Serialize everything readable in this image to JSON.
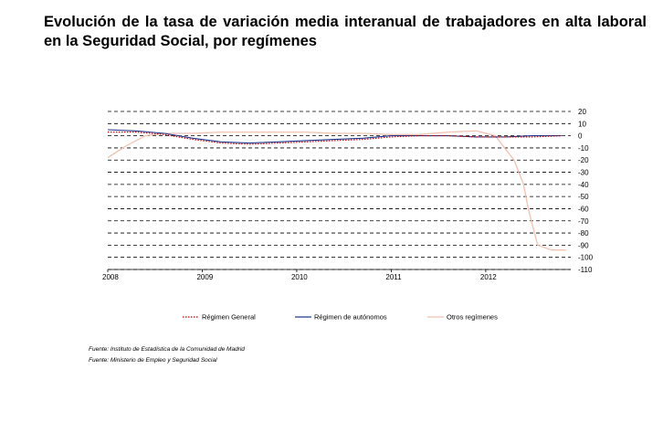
{
  "title": "Evolución de la tasa de variación media interanual de trabajadores en alta laboral en la Seguridad Social, por  regímenes",
  "sources": [
    "Fuente: Instituto de Estadística de la Comunidad de Madrid",
    "Fuente: Ministerio de Empleo y Seguridad Social"
  ],
  "chart_data": {
    "type": "line",
    "title": "Evolución de la tasa de variación media interanual de trabajadores en alta laboral en la Seguridad Social, por  regímenes",
    "xlabel": "",
    "ylabel": "",
    "x_ticks": [
      "2008",
      "2009",
      "2010",
      "2011",
      "2012"
    ],
    "xlim": [
      2008,
      2012.9
    ],
    "ylim": [
      -110,
      20
    ],
    "y_ticks": [
      20,
      10,
      0,
      -10,
      -20,
      -30,
      -40,
      -50,
      -60,
      -70,
      -80,
      -90,
      -100,
      -110
    ],
    "y_axis_side": "right",
    "grid": "horizontal dashed",
    "legend_position": "bottom",
    "series": [
      {
        "name": "Régimen General",
        "color": "#c00000",
        "style": "dotted",
        "x": [
          2008.0,
          2008.3,
          2008.6,
          2008.9,
          2009.2,
          2009.5,
          2009.8,
          2010.1,
          2010.4,
          2010.7,
          2011.0,
          2011.3,
          2011.6,
          2011.9,
          2012.2,
          2012.5,
          2012.8
        ],
        "y": [
          3,
          3,
          1,
          -3,
          -6,
          -7,
          -6,
          -5,
          -4,
          -3,
          -1,
          0,
          0,
          -1,
          -1,
          -1,
          0
        ]
      },
      {
        "name": "Régimen de autónomos",
        "color": "#1f3a93",
        "style": "solid",
        "x": [
          2008.0,
          2008.3,
          2008.6,
          2008.9,
          2009.2,
          2009.5,
          2009.8,
          2010.1,
          2010.4,
          2010.7,
          2011.0,
          2011.3,
          2011.6,
          2011.9,
          2012.2,
          2012.5,
          2012.8
        ],
        "y": [
          5,
          4,
          2,
          -2,
          -5,
          -6,
          -5,
          -4,
          -3,
          -2,
          0,
          0,
          0,
          -1,
          -1,
          0,
          0
        ]
      },
      {
        "name": "Otros regímenes",
        "color": "#f2c1b0",
        "style": "solid",
        "x": [
          2008.0,
          2008.2,
          2008.4,
          2008.6,
          2008.9,
          2009.2,
          2009.5,
          2009.8,
          2010.1,
          2010.4,
          2010.7,
          2011.0,
          2011.3,
          2011.6,
          2011.9,
          2012.1,
          2012.3,
          2012.4,
          2012.45,
          2012.55,
          2012.7,
          2012.85
        ],
        "y": [
          -18,
          -8,
          0,
          2,
          2,
          3,
          3,
          3,
          3,
          2,
          2,
          1,
          1,
          3,
          4,
          0,
          -20,
          -40,
          -60,
          -90,
          -94,
          -94
        ]
      }
    ]
  }
}
